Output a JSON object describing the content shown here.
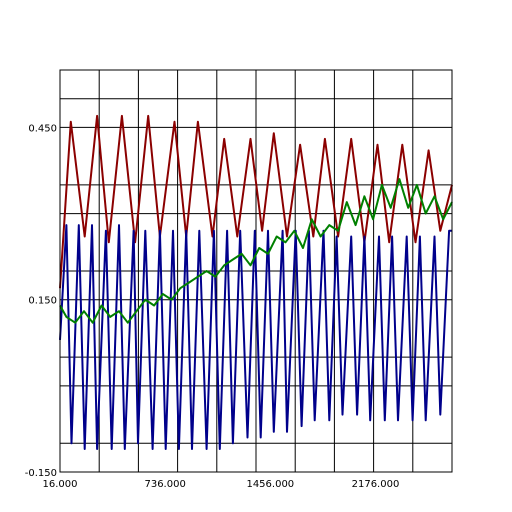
{
  "chart_data": {
    "type": "line",
    "title": "",
    "xlabel": "",
    "ylabel": "",
    "xlim": [
      16,
      2700
    ],
    "ylim": [
      -0.15,
      0.55
    ],
    "x_ticks": [
      {
        "value": 16,
        "label": "16.000"
      },
      {
        "value": 736,
        "label": "736.000"
      },
      {
        "value": 1456,
        "label": "1456.000"
      },
      {
        "value": 2176,
        "label": "2176.000"
      }
    ],
    "y_ticks": [
      {
        "value": 0.45,
        "label": "0.450"
      },
      {
        "value": 0.15,
        "label": "0.150"
      },
      {
        "value": -0.15,
        "label": "-0.150"
      }
    ],
    "grid": {
      "x_lines": 10,
      "y_lines": [
        -0.15,
        -0.1,
        0.0,
        0.05,
        0.15,
        0.2,
        0.3,
        0.35,
        0.45,
        0.5,
        0.55
      ]
    },
    "series": [
      {
        "color": "#8b0000",
        "x": [
          16,
          90,
          185,
          270,
          350,
          440,
          530,
          620,
          700,
          800,
          880,
          960,
          1060,
          1140,
          1230,
          1320,
          1400,
          1480,
          1570,
          1660,
          1750,
          1830,
          1920,
          2010,
          2100,
          2190,
          2270,
          2360,
          2450,
          2540,
          2620,
          2700
        ],
        "y": [
          0.17,
          0.46,
          0.26,
          0.47,
          0.25,
          0.47,
          0.25,
          0.47,
          0.26,
          0.46,
          0.26,
          0.46,
          0.26,
          0.43,
          0.26,
          0.43,
          0.27,
          0.44,
          0.26,
          0.42,
          0.26,
          0.43,
          0.26,
          0.43,
          0.25,
          0.42,
          0.25,
          0.42,
          0.25,
          0.41,
          0.27,
          0.35
        ]
      },
      {
        "color": "#00008b",
        "x": [
          16,
          60,
          95,
          145,
          185,
          235,
          270,
          330,
          370,
          420,
          460,
          520,
          550,
          600,
          650,
          700,
          740,
          790,
          830,
          880,
          920,
          970,
          1020,
          1070,
          1110,
          1160,
          1200,
          1250,
          1300,
          1350,
          1390,
          1440,
          1480,
          1540,
          1570,
          1630,
          1670,
          1720,
          1760,
          1820,
          1860,
          1910,
          1950,
          2010,
          2050,
          2100,
          2140,
          2200,
          2240,
          2290,
          2330,
          2390,
          2430,
          2480,
          2520,
          2580,
          2620,
          2680,
          2700
        ],
        "y": [
          0.08,
          0.28,
          -0.1,
          0.28,
          -0.11,
          0.28,
          -0.11,
          0.27,
          -0.11,
          0.28,
          -0.11,
          0.27,
          -0.1,
          0.27,
          -0.11,
          0.27,
          -0.11,
          0.27,
          -0.11,
          0.27,
          -0.11,
          0.27,
          -0.11,
          0.27,
          -0.11,
          0.27,
          -0.1,
          0.27,
          -0.09,
          0.27,
          -0.09,
          0.27,
          -0.08,
          0.27,
          -0.08,
          0.27,
          -0.07,
          0.27,
          -0.06,
          0.27,
          -0.06,
          0.26,
          -0.05,
          0.26,
          -0.05,
          0.26,
          -0.06,
          0.26,
          -0.06,
          0.26,
          -0.06,
          0.26,
          -0.06,
          0.26,
          -0.06,
          0.26,
          -0.05,
          0.27,
          0.27
        ]
      },
      {
        "color": "#008000",
        "x": [
          16,
          60,
          120,
          180,
          240,
          300,
          360,
          420,
          480,
          540,
          600,
          660,
          720,
          780,
          840,
          900,
          960,
          1020,
          1080,
          1140,
          1200,
          1260,
          1320,
          1380,
          1440,
          1500,
          1560,
          1620,
          1680,
          1740,
          1800,
          1860,
          1920,
          1980,
          2040,
          2100,
          2160,
          2220,
          2280,
          2340,
          2400,
          2460,
          2520,
          2580,
          2640,
          2700
        ],
        "y": [
          0.14,
          0.12,
          0.11,
          0.13,
          0.11,
          0.14,
          0.12,
          0.13,
          0.11,
          0.13,
          0.15,
          0.14,
          0.16,
          0.15,
          0.17,
          0.18,
          0.19,
          0.2,
          0.19,
          0.21,
          0.22,
          0.23,
          0.21,
          0.24,
          0.23,
          0.26,
          0.25,
          0.27,
          0.24,
          0.29,
          0.26,
          0.28,
          0.27,
          0.32,
          0.28,
          0.33,
          0.29,
          0.35,
          0.31,
          0.36,
          0.31,
          0.35,
          0.3,
          0.33,
          0.29,
          0.32
        ]
      }
    ]
  }
}
